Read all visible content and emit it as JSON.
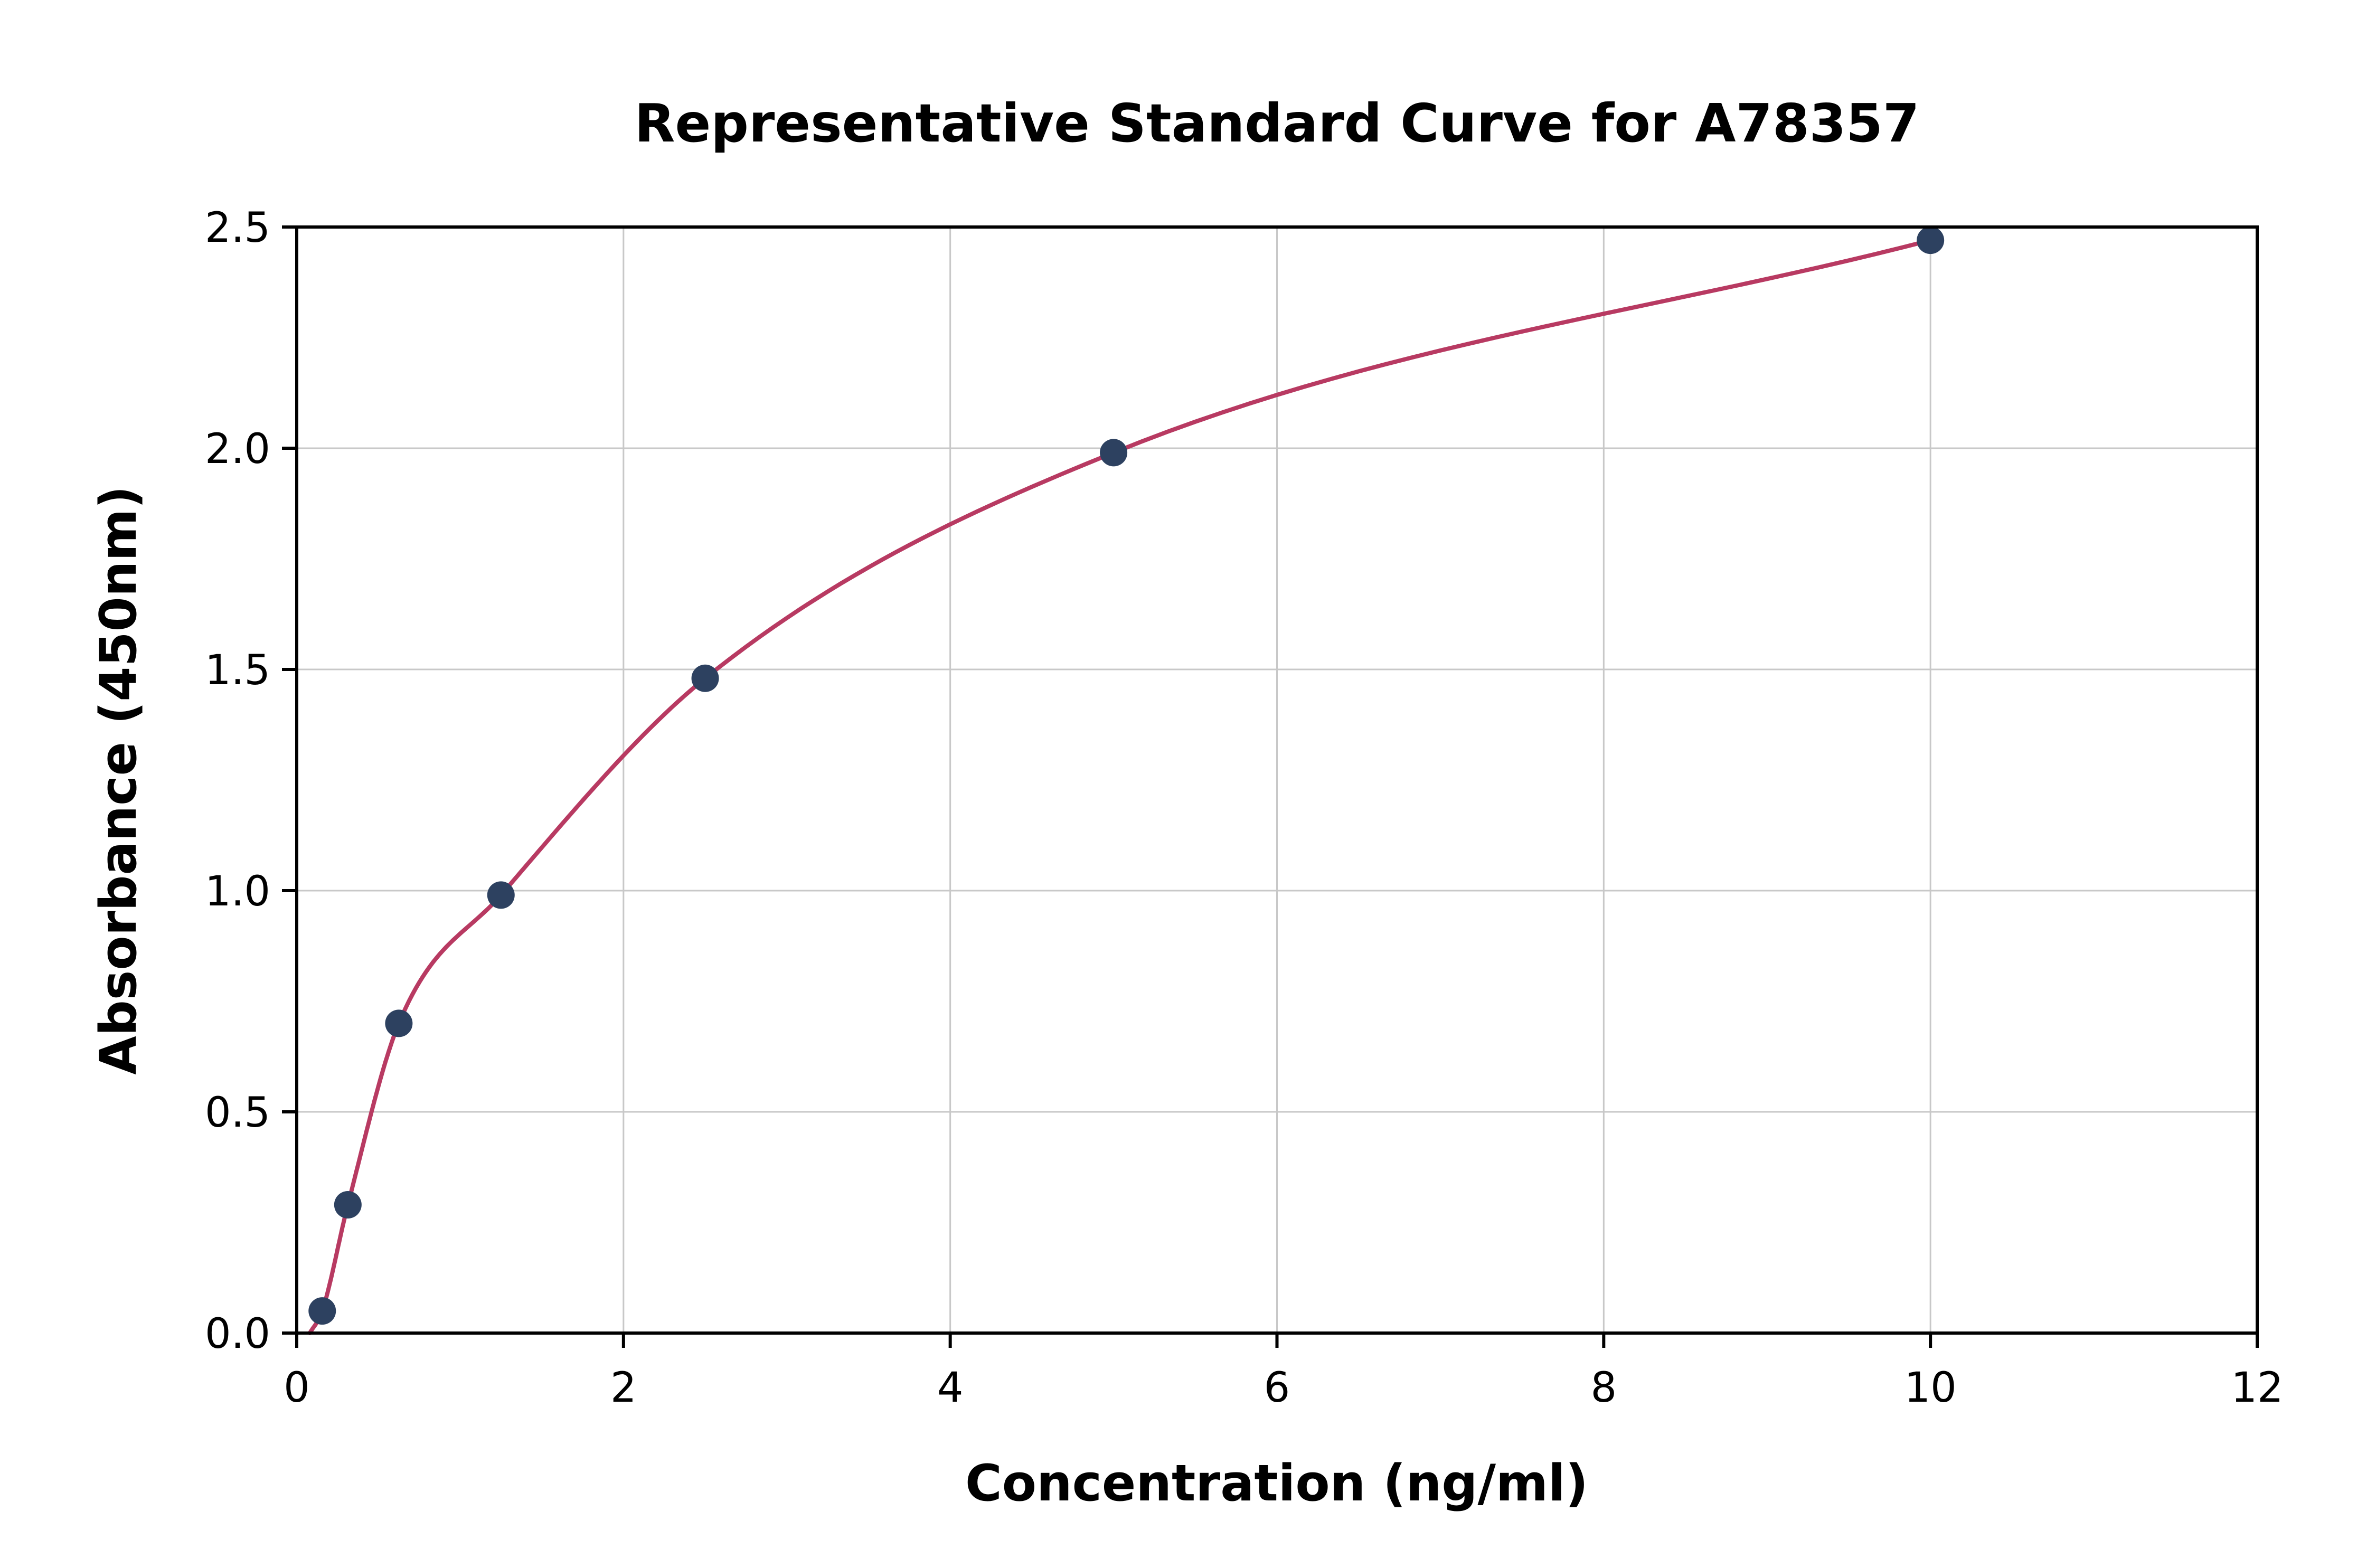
{
  "chart_data": {
    "type": "scatter",
    "title": "Representative Standard Curve for A78357",
    "xlabel": "Concentration (ng/ml)",
    "ylabel": "Absorbance (450nm)",
    "xlim": [
      0,
      12
    ],
    "ylim": [
      0,
      2.5
    ],
    "x_tick_values": [
      0,
      2,
      4,
      6,
      8,
      10,
      12
    ],
    "x_tick_labels": [
      "0",
      "2",
      "4",
      "6",
      "8",
      "10",
      "12"
    ],
    "y_tick_values": [
      0,
      0.5,
      1.0,
      1.5,
      2.0,
      2.5
    ],
    "y_tick_labels": [
      "0.0",
      "0.5",
      "1.0",
      "1.5",
      "2.0",
      "2.5"
    ],
    "grid": true,
    "legend": "none",
    "points": [
      {
        "x": 0.156,
        "y": 0.05
      },
      {
        "x": 0.313,
        "y": 0.29
      },
      {
        "x": 0.625,
        "y": 0.7
      },
      {
        "x": 1.25,
        "y": 0.99
      },
      {
        "x": 2.5,
        "y": 1.48
      },
      {
        "x": 5.0,
        "y": 1.99
      },
      {
        "x": 10.0,
        "y": 2.47
      }
    ],
    "fit_curve": {
      "description": "smooth saturation fit through standard points",
      "start": {
        "x": 0.08,
        "y": 0.0
      },
      "end_x": 10.0
    },
    "colors": {
      "point": "#2d4160",
      "curve": "#b83a62",
      "grid": "#c8c8c8",
      "axis": "#000000",
      "background": "#ffffff"
    }
  }
}
